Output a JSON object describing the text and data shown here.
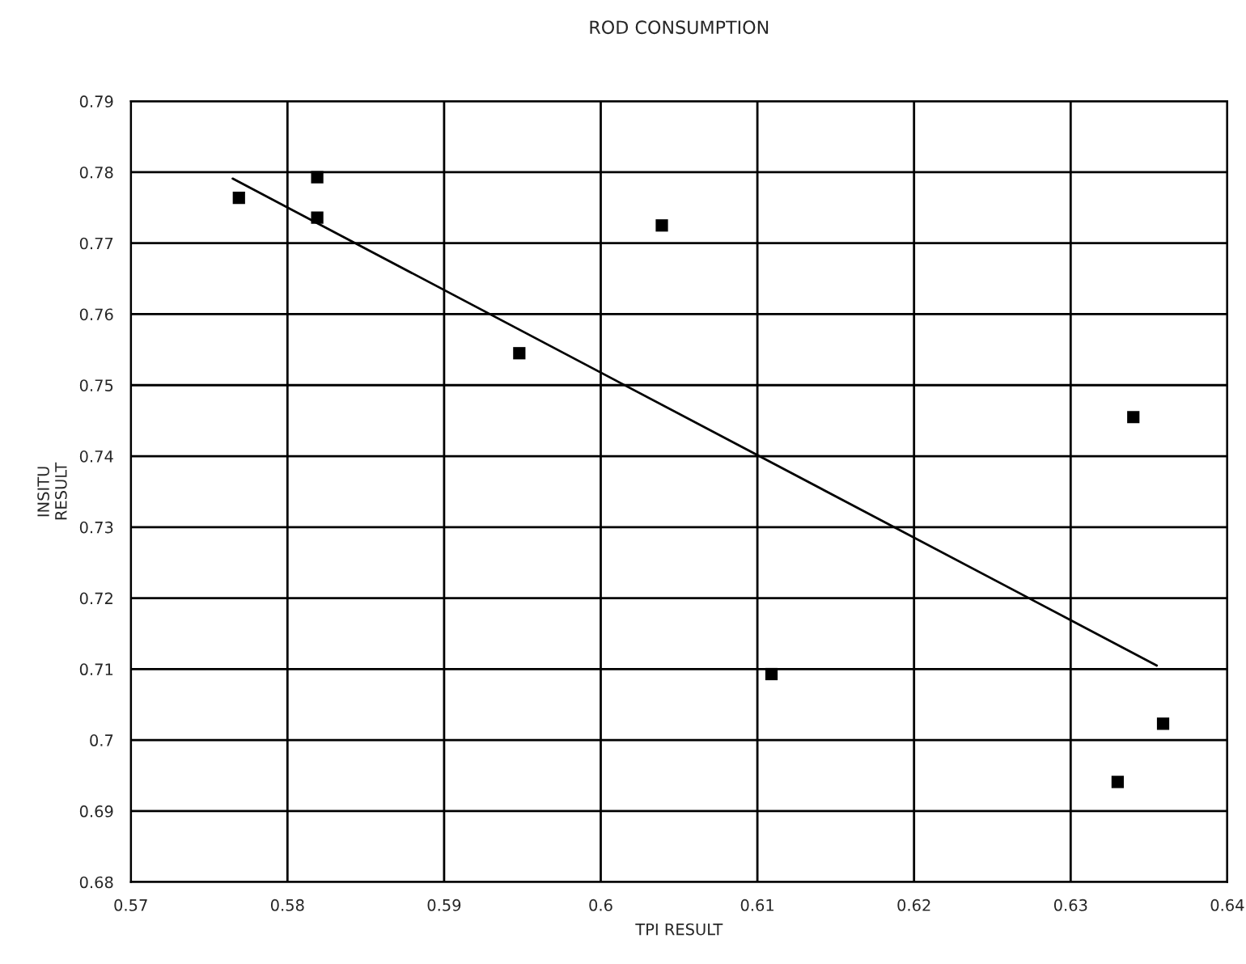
{
  "chart_data": {
    "type": "scatter",
    "title": "ROD CONSUMPTION",
    "xlabel": "TPI RESULT",
    "ylabel": "INSITU\nRESULT",
    "xlim": [
      0.57,
      0.64
    ],
    "xticks": [
      0.57,
      0.58,
      0.59,
      0.6,
      0.61,
      0.62,
      0.63,
      0.64
    ],
    "ylim": [
      0.68,
      0.79
    ],
    "yticks": [
      0.68,
      0.69,
      0.7,
      0.71,
      0.72,
      0.73,
      0.74,
      0.75,
      0.76,
      0.77,
      0.78,
      0.79
    ],
    "grid": true,
    "series": [
      {
        "marker": "square",
        "color": "#000000",
        "x": [
          0.5769,
          0.5819,
          0.5819,
          0.6039,
          0.5948,
          0.634,
          0.6109,
          0.6359,
          0.633
        ],
        "values": [
          0.7764,
          0.7793,
          0.7736,
          0.7725,
          0.7545,
          0.7455,
          0.7093,
          0.7023,
          0.6941
        ]
      },
      {
        "type": "line",
        "color": "#000000",
        "x": [
          0.5765,
          0.6355
        ],
        "values": [
          0.7791,
          0.7105
        ]
      }
    ]
  }
}
